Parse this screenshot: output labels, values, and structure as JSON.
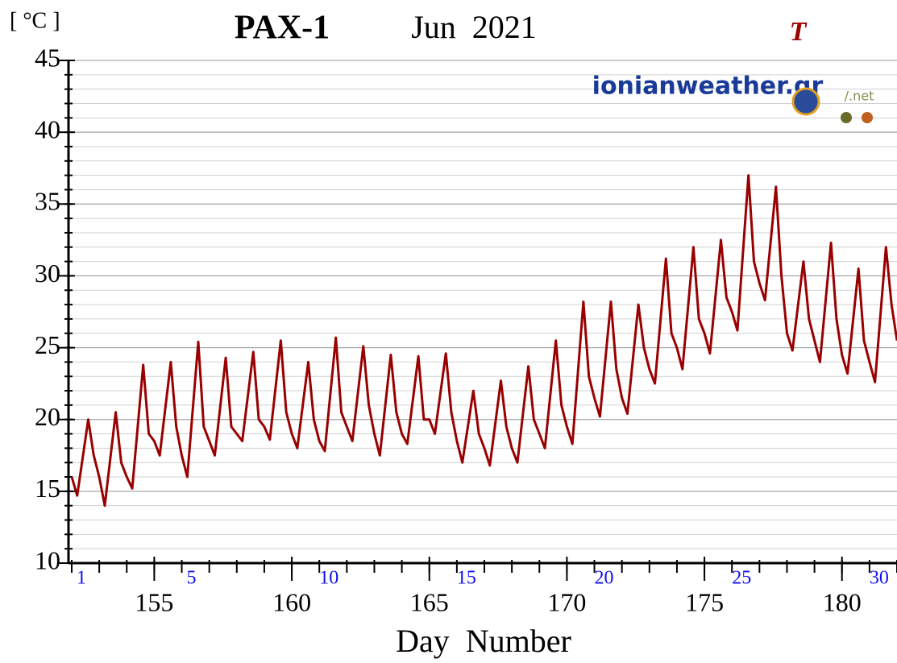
{
  "chart_data": {
    "type": "line",
    "title": "PAX-1",
    "subtitle": "Jun  2021",
    "y_unit": "[ °C ]",
    "x_label": "Day  Number",
    "watermark": "ionianweather.gr",
    "watermark_suffix": "/.net",
    "xlim": [
      152,
      182
    ],
    "ylim": [
      10,
      45
    ],
    "xticks": [
      155,
      160,
      165,
      170,
      175,
      180
    ],
    "xminor_ticks": [
      152,
      153,
      154,
      155,
      156,
      157,
      158,
      159,
      160,
      161,
      162,
      163,
      164,
      165,
      166,
      167,
      168,
      169,
      170,
      171,
      172,
      173,
      174,
      175,
      176,
      177,
      178,
      179,
      180,
      181,
      182
    ],
    "yticks": [
      10,
      15,
      20,
      25,
      30,
      35,
      40,
      45
    ],
    "yminor_ticks": [
      10,
      11,
      12,
      13,
      14,
      15,
      16,
      17,
      18,
      19,
      20,
      21,
      22,
      23,
      24,
      25,
      26,
      27,
      28,
      29,
      30,
      31,
      32,
      33,
      34,
      35,
      36,
      37,
      38,
      39,
      40,
      41,
      42,
      43,
      44,
      45
    ],
    "month_days": [
      {
        "value": 152,
        "label": "1"
      },
      {
        "value": 156,
        "label": "5"
      },
      {
        "value": 161,
        "label": "10"
      },
      {
        "value": 166,
        "label": "15"
      },
      {
        "value": 171,
        "label": "20"
      },
      {
        "value": 176,
        "label": "25"
      },
      {
        "value": 181,
        "label": "30"
      }
    ],
    "grid": true,
    "legend_position": "top-right",
    "x": [
      152,
      152.2,
      152.6,
      152.8,
      153,
      153.2,
      153.6,
      153.8,
      154,
      154.2,
      154.6,
      154.8,
      155,
      155.2,
      155.6,
      155.8,
      156,
      156.2,
      156.6,
      156.8,
      157,
      157.2,
      157.6,
      157.8,
      158,
      158.2,
      158.6,
      158.8,
      159,
      159.2,
      159.6,
      159.8,
      160,
      160.2,
      160.6,
      160.8,
      161,
      161.2,
      161.6,
      161.8,
      162,
      162.2,
      162.6,
      162.8,
      163,
      163.2,
      163.6,
      163.8,
      164,
      164.2,
      164.6,
      164.8,
      165,
      165.2,
      165.6,
      165.8,
      166,
      166.2,
      166.6,
      166.8,
      167,
      167.2,
      167.6,
      167.8,
      168,
      168.2,
      168.6,
      168.8,
      169,
      169.2,
      169.6,
      169.8,
      170,
      170.2,
      170.6,
      170.8,
      171,
      171.2,
      171.6,
      171.8,
      172,
      172.2,
      172.6,
      172.8,
      173,
      173.2,
      173.6,
      173.8,
      174,
      174.2,
      174.6,
      174.8,
      175,
      175.2,
      175.6,
      175.8,
      176,
      176.2,
      176.6,
      176.8,
      177,
      177.2,
      177.6,
      177.8,
      178,
      178.2,
      178.6,
      178.8,
      179,
      179.2,
      179.6,
      179.8,
      180,
      180.2,
      180.6,
      180.8,
      181,
      181.2,
      181.6,
      181.8,
      182
    ],
    "series": [
      {
        "name": "T",
        "color": "#990000",
        "values": [
          16.0,
          14.7,
          20.0,
          17.5,
          16.0,
          14.0,
          20.5,
          17.0,
          16.0,
          15.2,
          23.8,
          19.0,
          18.5,
          17.5,
          24.0,
          19.5,
          17.5,
          16.0,
          25.4,
          19.5,
          18.5,
          17.5,
          24.3,
          19.5,
          19.0,
          18.5,
          24.7,
          20.0,
          19.5,
          18.6,
          25.5,
          20.5,
          19.0,
          18.0,
          24.0,
          20.0,
          18.5,
          17.8,
          25.7,
          20.5,
          19.5,
          18.5,
          25.1,
          21.0,
          19.0,
          17.5,
          24.5,
          20.5,
          19.0,
          18.3,
          24.4,
          20.0,
          20.0,
          19.0,
          24.6,
          20.5,
          18.5,
          17.0,
          22.0,
          19.0,
          18.0,
          16.8,
          22.7,
          19.5,
          18.0,
          17.0,
          23.7,
          20.0,
          19.0,
          18.0,
          25.5,
          21.0,
          19.5,
          18.3,
          28.2,
          23.0,
          21.5,
          20.2,
          28.2,
          23.5,
          21.5,
          20.4,
          28.0,
          25.0,
          23.5,
          22.5,
          31.2,
          26.0,
          25.0,
          23.5,
          32.0,
          27.0,
          26.0,
          24.6,
          32.5,
          28.5,
          27.5,
          26.2,
          37.0,
          31.0,
          29.5,
          28.3,
          36.2,
          30.0,
          26.0,
          24.8,
          31.0,
          27.0,
          25.5,
          24.0,
          32.3,
          27.0,
          24.5,
          23.2,
          30.5,
          25.5,
          24.0,
          22.6,
          32.0,
          28.0,
          25.5
        ]
      }
    ]
  }
}
